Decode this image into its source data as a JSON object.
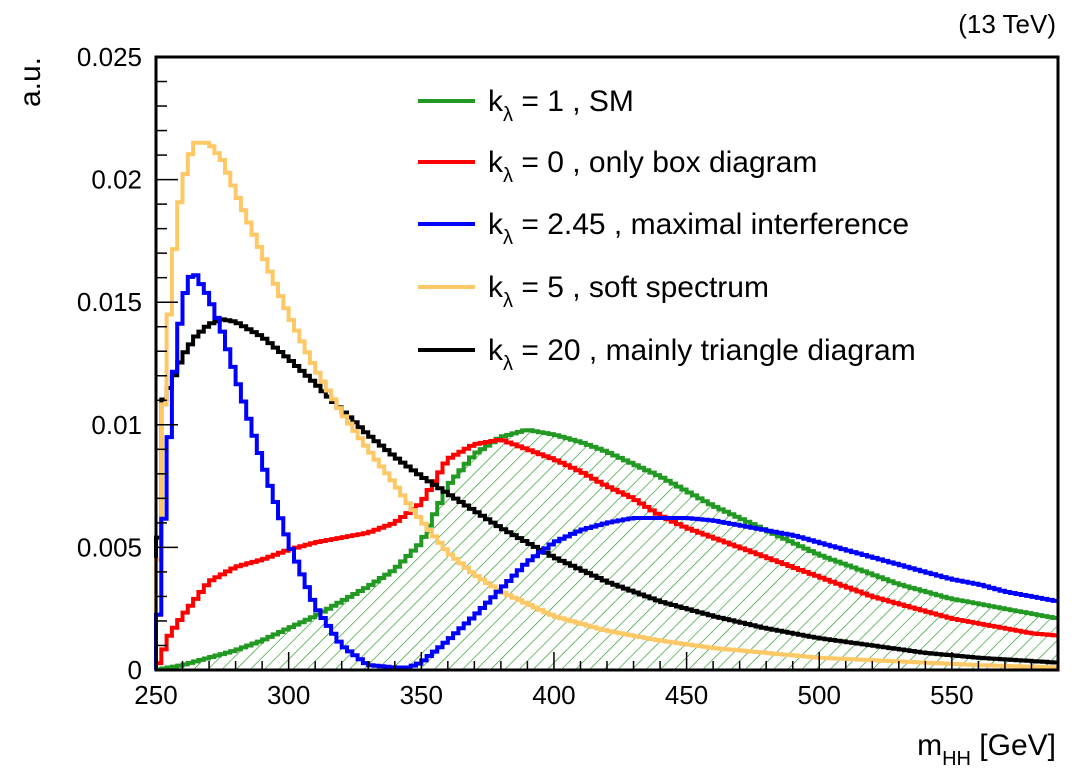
{
  "energy_label": "(13 TeV)",
  "chart_data": {
    "type": "line",
    "title": "",
    "xlabel": {
      "main": "m",
      "sub": "HH",
      "unit": " [GeV]"
    },
    "ylabel": "a.u.",
    "xlim": [
      250,
      590
    ],
    "ylim": [
      0,
      0.025
    ],
    "xticks": [
      "250",
      "300",
      "350",
      "400",
      "450",
      "500",
      "550"
    ],
    "yticks": [
      "0",
      "0.005",
      "0.01",
      "0.015",
      "0.02",
      "0.025"
    ],
    "legend_position": "top-right",
    "series": [
      {
        "name_parts": [
          "k",
          "λ",
          " = 1 , SM"
        ],
        "color": "#229922",
        "hatched": true,
        "x": [
          250,
          260,
          270,
          280,
          290,
          300,
          310,
          320,
          330,
          340,
          350,
          360,
          370,
          380,
          390,
          400,
          410,
          420,
          430,
          440,
          450,
          460,
          470,
          480,
          490,
          500,
          510,
          520,
          530,
          540,
          550,
          560,
          570,
          580,
          590
        ],
        "y": [
          0.0,
          0.0002,
          0.0005,
          0.0008,
          0.0012,
          0.0017,
          0.0022,
          0.0028,
          0.0034,
          0.0041,
          0.0052,
          0.0075,
          0.0088,
          0.0095,
          0.0098,
          0.0096,
          0.0093,
          0.0089,
          0.0084,
          0.0079,
          0.0073,
          0.0067,
          0.0062,
          0.0057,
          0.0052,
          0.0047,
          0.0043,
          0.0039,
          0.0035,
          0.0032,
          0.0029,
          0.0027,
          0.0025,
          0.0023,
          0.0021
        ]
      },
      {
        "name_parts": [
          "k",
          "λ",
          " = 0 , only box diagram"
        ],
        "color": "#ff0000",
        "x": [
          250,
          255,
          260,
          265,
          270,
          280,
          290,
          300,
          310,
          320,
          330,
          340,
          350,
          360,
          370,
          380,
          390,
          400,
          410,
          420,
          430,
          440,
          450,
          460,
          470,
          480,
          490,
          500,
          510,
          520,
          530,
          540,
          550,
          560,
          570,
          580,
          590
        ],
        "y": [
          0.0,
          0.0014,
          0.0022,
          0.0029,
          0.0036,
          0.0042,
          0.0045,
          0.0049,
          0.0052,
          0.0054,
          0.0056,
          0.006,
          0.0068,
          0.0086,
          0.0092,
          0.0094,
          0.009,
          0.0086,
          0.0081,
          0.0075,
          0.007,
          0.0063,
          0.0058,
          0.0054,
          0.005,
          0.0046,
          0.0042,
          0.0038,
          0.0034,
          0.003,
          0.0027,
          0.0024,
          0.0021,
          0.0019,
          0.0017,
          0.0015,
          0.0014
        ]
      },
      {
        "name_parts": [
          "k",
          "λ",
          " = 2.45 , maximal interference"
        ],
        "color": "#0000ff",
        "x": [
          250,
          252,
          255,
          258,
          262,
          265,
          270,
          275,
          280,
          290,
          300,
          310,
          320,
          330,
          340,
          345,
          350,
          360,
          370,
          380,
          390,
          400,
          410,
          420,
          430,
          440,
          450,
          460,
          470,
          480,
          490,
          500,
          510,
          520,
          530,
          540,
          550,
          560,
          570,
          580,
          590
        ],
        "y": [
          0.0,
          0.0045,
          0.0095,
          0.0135,
          0.016,
          0.0161,
          0.0152,
          0.0138,
          0.012,
          0.0085,
          0.0052,
          0.0026,
          0.001,
          0.0002,
          0.0001,
          0.0001,
          0.0003,
          0.0012,
          0.0022,
          0.0033,
          0.0044,
          0.0052,
          0.0057,
          0.006,
          0.0062,
          0.0062,
          0.0062,
          0.0061,
          0.0059,
          0.0057,
          0.0055,
          0.0052,
          0.0049,
          0.0046,
          0.0043,
          0.004,
          0.0037,
          0.0035,
          0.0032,
          0.003,
          0.0028
        ]
      },
      {
        "name_parts": [
          "k",
          "λ",
          " = 5 , soft spectrum"
        ],
        "color": "#ffc866",
        "x": [
          250,
          252,
          255,
          258,
          262,
          265,
          270,
          275,
          280,
          290,
          300,
          310,
          320,
          330,
          340,
          345,
          350,
          360,
          370,
          380,
          390,
          400,
          420,
          440,
          460,
          480,
          500,
          520,
          540,
          560,
          590
        ],
        "y": [
          0.0,
          0.009,
          0.0145,
          0.0185,
          0.0208,
          0.0215,
          0.0215,
          0.0208,
          0.0195,
          0.017,
          0.0145,
          0.0123,
          0.0105,
          0.009,
          0.0076,
          0.0068,
          0.0061,
          0.0048,
          0.0039,
          0.0032,
          0.0027,
          0.0022,
          0.0016,
          0.0012,
          0.0009,
          0.0007,
          0.0005,
          0.0004,
          0.0003,
          0.0002,
          0.0001
        ]
      },
      {
        "name_parts": [
          "k",
          "λ",
          " = 20 , mainly triangle diagram"
        ],
        "color": "#000000",
        "x": [
          250,
          252,
          255,
          260,
          265,
          270,
          275,
          280,
          290,
          300,
          310,
          320,
          330,
          340,
          350,
          360,
          370,
          380,
          390,
          400,
          420,
          440,
          460,
          480,
          500,
          520,
          540,
          560,
          590
        ],
        "y": [
          0.0,
          0.0108,
          0.0115,
          0.0128,
          0.0136,
          0.0141,
          0.0143,
          0.0142,
          0.0136,
          0.0127,
          0.0117,
          0.0106,
          0.0096,
          0.0087,
          0.0079,
          0.0072,
          0.0065,
          0.0058,
          0.0052,
          0.0046,
          0.0036,
          0.0028,
          0.0022,
          0.0017,
          0.0013,
          0.001,
          0.0007,
          0.0005,
          0.0003
        ]
      }
    ]
  }
}
